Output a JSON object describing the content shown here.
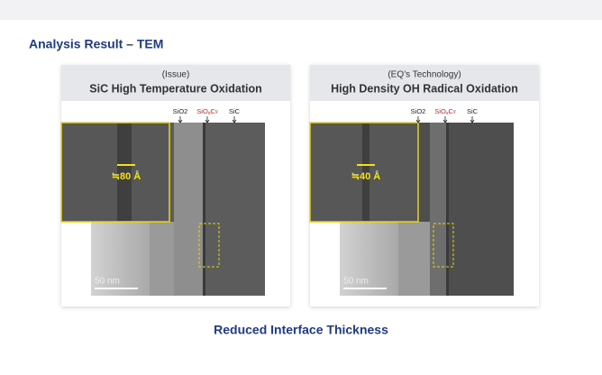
{
  "header": {
    "title": "Analysis Result – TEM"
  },
  "panels": [
    {
      "subtitle": "(Issue)",
      "title": "SiC High Temperature Oxidation",
      "layers": {
        "oxide": "SiO2",
        "interface": [
          "SiO",
          "x",
          "C",
          "y"
        ],
        "substrate": "SiC"
      },
      "thickness": "≒80 Å",
      "scale": "50 nm"
    },
    {
      "subtitle": "(EQ’s Technology)",
      "title": "High Density OH Radical Oxidation",
      "layers": {
        "oxide": "SiO2",
        "interface": [
          "SiO",
          "x",
          "C",
          "y"
        ],
        "substrate": "SiC"
      },
      "thickness": "≒40 Å",
      "scale": "50 nm"
    }
  ],
  "footer": {
    "text": "Reduced Interface Thickness"
  }
}
